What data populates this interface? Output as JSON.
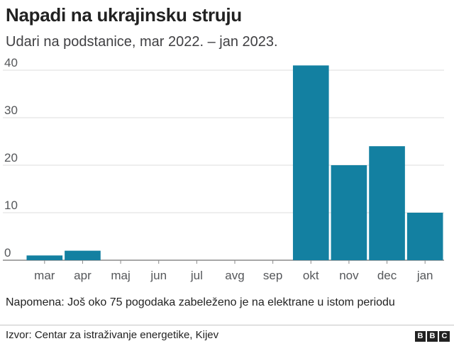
{
  "header": {
    "title": "Napadi na ukrajinsku struju",
    "subtitle": "Udari na podstanice, mar 2022. – jan 2023."
  },
  "chart_data": {
    "type": "bar",
    "categories": [
      "mar",
      "apr",
      "maj",
      "jun",
      "jul",
      "avg",
      "sep",
      "okt",
      "nov",
      "dec",
      "jan"
    ],
    "values": [
      1,
      2,
      0,
      0,
      0,
      0,
      0,
      41,
      20,
      24,
      10
    ],
    "yticks": [
      0,
      10,
      20,
      30,
      40
    ],
    "ylim": [
      0,
      42
    ],
    "grid": true,
    "bar_color": "#1380a1",
    "grid_color": "#dcdcdc",
    "title": "Napadi na ukrajinsku struju",
    "subtitle": "Udari na podstanice, mar 2022. – jan 2023."
  },
  "note": "Napomena: Još oko 75 pogodaka zabeleženo je na elektrane u istom periodu",
  "footer": {
    "source": "Izvor: Centar za istraživanje energetike, Kijev",
    "logo_letters": [
      "B",
      "B",
      "C"
    ]
  }
}
